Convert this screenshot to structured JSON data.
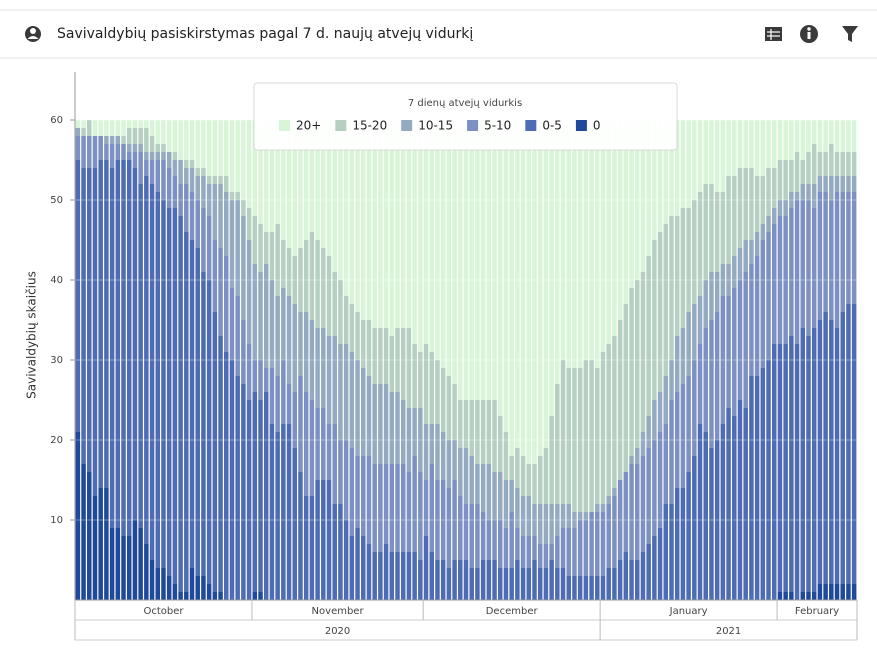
{
  "chart_data": {
    "type": "stacked_bar",
    "title": "Savivaldybių pasiskirstymas pagal 7 d. naujų atvejų vidurkį",
    "y_label": "Savivaldybių skaičius",
    "legend_title": "7 dienų atvejų vidurkis",
    "legend_position": "top",
    "ylim": [
      0,
      66
    ],
    "yticks": [
      10,
      20,
      30,
      40,
      50,
      60
    ],
    "grid": true,
    "categories": [
      "October",
      "October",
      "October",
      "October",
      "October",
      "October",
      "October",
      "October",
      "October",
      "October",
      "October",
      "October",
      "October",
      "October",
      "October",
      "October",
      "October",
      "October",
      "October",
      "October",
      "October",
      "October",
      "October",
      "October",
      "October",
      "October",
      "October",
      "October",
      "October",
      "October",
      "October",
      "November",
      "November",
      "November",
      "November",
      "November",
      "November",
      "November",
      "November",
      "November",
      "November",
      "November",
      "November",
      "November",
      "November",
      "November",
      "November",
      "November",
      "November",
      "November",
      "November",
      "November",
      "November",
      "November",
      "November",
      "November",
      "November",
      "November",
      "November",
      "November",
      "November",
      "December",
      "December",
      "December",
      "December",
      "December",
      "December",
      "December",
      "December",
      "December",
      "December",
      "December",
      "December",
      "December",
      "December",
      "December",
      "December",
      "December",
      "December",
      "December",
      "December",
      "December",
      "December",
      "December",
      "December",
      "December",
      "December",
      "December",
      "December",
      "December",
      "December",
      "December",
      "January",
      "January",
      "January",
      "January",
      "January",
      "January",
      "January",
      "January",
      "January",
      "January",
      "January",
      "January",
      "January",
      "January",
      "January",
      "January",
      "January",
      "January",
      "January",
      "January",
      "January",
      "January",
      "January",
      "January",
      "January",
      "January",
      "January",
      "January",
      "January",
      "January",
      "January",
      "February",
      "February",
      "February",
      "February",
      "February",
      "February",
      "February",
      "February",
      "February",
      "February",
      "February",
      "February",
      "February",
      "February"
    ],
    "year_categories": [
      "2020",
      "2020",
      "2020",
      "2020",
      "2020",
      "2020",
      "2020",
      "2020",
      "2020",
      "2020",
      "2020",
      "2020",
      "2020",
      "2020",
      "2020",
      "2020",
      "2020",
      "2020",
      "2020",
      "2020",
      "2020",
      "2020",
      "2020",
      "2020",
      "2020",
      "2020",
      "2020",
      "2020",
      "2020",
      "2020",
      "2020",
      "2020",
      "2020",
      "2020",
      "2020",
      "2020",
      "2020",
      "2020",
      "2020",
      "2020",
      "2020",
      "2020",
      "2020",
      "2020",
      "2020",
      "2020",
      "2020",
      "2020",
      "2020",
      "2020",
      "2020",
      "2020",
      "2020",
      "2020",
      "2020",
      "2020",
      "2020",
      "2020",
      "2020",
      "2020",
      "2020",
      "2020",
      "2020",
      "2020",
      "2020",
      "2020",
      "2020",
      "2020",
      "2020",
      "2020",
      "2020",
      "2020",
      "2020",
      "2020",
      "2020",
      "2020",
      "2020",
      "2020",
      "2020",
      "2020",
      "2020",
      "2020",
      "2020",
      "2020",
      "2020",
      "2020",
      "2020",
      "2020",
      "2020",
      "2020",
      "2020",
      "2020",
      "2021",
      "2021",
      "2021",
      "2021",
      "2021",
      "2021",
      "2021",
      "2021",
      "2021",
      "2021",
      "2021",
      "2021",
      "2021",
      "2021",
      "2021",
      "2021",
      "2021",
      "2021",
      "2021",
      "2021",
      "2021",
      "2021",
      "2021",
      "2021",
      "2021",
      "2021",
      "2021",
      "2021",
      "2021",
      "2021",
      "2021",
      "2021",
      "2021",
      "2021",
      "2021",
      "2021",
      "2021",
      "2021",
      "2021",
      "2021",
      "2021",
      "2021",
      "2021",
      "2021",
      "2021"
    ],
    "series": [
      {
        "name": "20+",
        "color": "#d9f5d7",
        "values": [
          1,
          1,
          0,
          2,
          2,
          2,
          2,
          2,
          2,
          1,
          1,
          1,
          1,
          2,
          3,
          3,
          4,
          4,
          5,
          5,
          5,
          6,
          6,
          7,
          7,
          7,
          7,
          9,
          9,
          10,
          11,
          12,
          13,
          14,
          14,
          13,
          15,
          16,
          17,
          16,
          15,
          14,
          15,
          16,
          17,
          19,
          20,
          22,
          23,
          24,
          25,
          25,
          26,
          26,
          26,
          27,
          26,
          26,
          26,
          28,
          29,
          28,
          29,
          30,
          31,
          32,
          33,
          35,
          35,
          35,
          35,
          35,
          35,
          35,
          37,
          39,
          42,
          41,
          42,
          43,
          43,
          42,
          41,
          37,
          33,
          30,
          31,
          31,
          31,
          30,
          30,
          31,
          29,
          28,
          27,
          25,
          23,
          21,
          20,
          19,
          17,
          15,
          14,
          13,
          12,
          12,
          11,
          11,
          10,
          9,
          8,
          8,
          9,
          9,
          7,
          7,
          6,
          6,
          6,
          7,
          7,
          6,
          6,
          5,
          5,
          5,
          4,
          5,
          4,
          3,
          4,
          4,
          3,
          4,
          4,
          4,
          4
        ]
      },
      {
        "name": "15-20",
        "color": "#b5cfc1",
        "values": [
          0,
          1,
          2,
          0,
          0,
          0,
          0,
          0,
          1,
          2,
          2,
          2,
          3,
          2,
          1,
          1,
          0,
          1,
          0,
          1,
          1,
          1,
          1,
          1,
          1,
          1,
          2,
          1,
          1,
          2,
          4,
          6,
          6,
          4,
          6,
          9,
          6,
          6,
          6,
          8,
          9,
          11,
          11,
          10,
          10,
          8,
          8,
          6,
          6,
          6,
          6,
          7,
          7,
          7,
          7,
          7,
          8,
          9,
          10,
          8,
          7,
          10,
          9,
          8,
          8,
          8,
          7,
          6,
          6,
          7,
          8,
          8,
          8,
          9,
          7,
          6,
          3,
          5,
          5,
          4,
          5,
          6,
          7,
          11,
          15,
          18,
          17,
          18,
          18,
          19,
          19,
          17,
          19,
          19,
          19,
          20,
          21,
          21,
          21,
          20,
          20,
          20,
          20,
          19,
          18,
          15,
          15,
          13,
          13,
          13,
          12,
          11,
          10,
          9,
          11,
          10,
          10,
          9,
          9,
          7,
          6,
          6,
          5,
          5,
          5,
          4,
          5,
          3,
          4,
          5,
          3,
          3,
          4,
          3,
          3,
          3,
          3
        ]
      },
      {
        "name": "10-15",
        "color": "#94aac1",
        "values": [
          1,
          0,
          0,
          0,
          0,
          1,
          1,
          1,
          0,
          1,
          1,
          1,
          1,
          1,
          1,
          1,
          2,
          2,
          3,
          2,
          3,
          3,
          4,
          4,
          7,
          8,
          8,
          11,
          12,
          13,
          13,
          12,
          11,
          13,
          11,
          10,
          9,
          11,
          11,
          8,
          10,
          10,
          10,
          10,
          11,
          11,
          12,
          12,
          12,
          12,
          11,
          10,
          10,
          10,
          10,
          9,
          9,
          8,
          8,
          6,
          8,
          7,
          5,
          7,
          6,
          6,
          5,
          6,
          7,
          6,
          5,
          6,
          7,
          6,
          6,
          6,
          4,
          5,
          5,
          5,
          4,
          5,
          5,
          5,
          4,
          3,
          3,
          2,
          1,
          1,
          0,
          1,
          1,
          1,
          1,
          0,
          0,
          1,
          2,
          3,
          4,
          5,
          5,
          6,
          5,
          7,
          7,
          8,
          7,
          6,
          6,
          6,
          5,
          4,
          4,
          4,
          4,
          4,
          3,
          3,
          2,
          2,
          2,
          2,
          2,
          2,
          1,
          2,
          2,
          3,
          2,
          2,
          3,
          2,
          2,
          2,
          2
        ]
      },
      {
        "name": "5-10",
        "color": "#7c90c3",
        "values": [
          3,
          4,
          4,
          4,
          3,
          2,
          3,
          2,
          2,
          1,
          2,
          4,
          2,
          3,
          4,
          5,
          5,
          4,
          4,
          6,
          6,
          6,
          8,
          8,
          9,
          11,
          12,
          9,
          10,
          8,
          7,
          4,
          5,
          3,
          7,
          7,
          8,
          5,
          7,
          12,
          13,
          12,
          9,
          9,
          7,
          10,
          8,
          10,
          11,
          9,
          10,
          11,
          11,
          11,
          10,
          11,
          11,
          11,
          10,
          12,
          11,
          7,
          11,
          10,
          10,
          10,
          10,
          8,
          7,
          8,
          8,
          6,
          5,
          5,
          6,
          5,
          7,
          4,
          4,
          4,
          3,
          3,
          3,
          2,
          4,
          5,
          6,
          6,
          7,
          7,
          8,
          8,
          8,
          8,
          9,
          10,
          10,
          12,
          12,
          12,
          12,
          12,
          12,
          10,
          13,
          12,
          13,
          12,
          12,
          10,
          13,
          16,
          16,
          16,
          14,
          16,
          15,
          17,
          14,
          15,
          16,
          16,
          15,
          16,
          16,
          16,
          18,
          16,
          17,
          15,
          16,
          15,
          15,
          17,
          15,
          14,
          14
        ]
      },
      {
        "name": "0-5",
        "color": "#4d6cb3",
        "values": [
          34,
          37,
          38,
          41,
          41,
          41,
          45,
          46,
          47,
          47,
          44,
          43,
          46,
          47,
          47,
          46,
          46,
          47,
          47,
          45,
          41,
          41,
          38,
          38,
          35,
          32,
          31,
          30,
          28,
          27,
          25,
          25,
          24,
          26,
          22,
          21,
          22,
          22,
          19,
          16,
          13,
          13,
          15,
          15,
          15,
          12,
          12,
          10,
          8,
          9,
          8,
          7,
          6,
          6,
          7,
          6,
          6,
          6,
          6,
          6,
          5,
          8,
          6,
          5,
          5,
          4,
          5,
          5,
          5,
          4,
          4,
          5,
          5,
          5,
          4,
          4,
          4,
          5,
          4,
          4,
          5,
          4,
          4,
          5,
          4,
          4,
          3,
          3,
          3,
          3,
          3,
          3,
          3,
          4,
          4,
          5,
          6,
          5,
          5,
          6,
          7,
          8,
          9,
          12,
          12,
          14,
          14,
          16,
          18,
          22,
          21,
          19,
          20,
          22,
          24,
          23,
          25,
          24,
          28,
          28,
          29,
          30,
          32,
          31,
          31,
          32,
          32,
          33,
          32,
          33,
          33,
          34,
          33,
          32,
          34,
          35,
          35
        ]
      },
      {
        "name": "0",
        "color": "#1f4a9c",
        "values": [
          21,
          17,
          16,
          13,
          14,
          14,
          9,
          9,
          8,
          8,
          10,
          9,
          7,
          5,
          4,
          4,
          3,
          2,
          1,
          1,
          4,
          3,
          3,
          2,
          1,
          1,
          0,
          0,
          0,
          0,
          0,
          1,
          1,
          0,
          0,
          0,
          0,
          0,
          0,
          0,
          0,
          0,
          0,
          0,
          0,
          0,
          0,
          0,
          0,
          0,
          0,
          0,
          0,
          0,
          0,
          0,
          0,
          0,
          0,
          0,
          0,
          0,
          0,
          0,
          0,
          0,
          0,
          0,
          0,
          0,
          0,
          0,
          0,
          0,
          0,
          0,
          0,
          0,
          0,
          0,
          0,
          0,
          0,
          0,
          0,
          0,
          0,
          0,
          0,
          0,
          0,
          0,
          0,
          0,
          0,
          0,
          0,
          0,
          0,
          0,
          0,
          0,
          0,
          0,
          0,
          0,
          0,
          0,
          0,
          0,
          0,
          0,
          0,
          0,
          0,
          0,
          0,
          0,
          0,
          0,
          0,
          0,
          0,
          1,
          1,
          1,
          0,
          1,
          1,
          1,
          2,
          2,
          2,
          2,
          2,
          2,
          2
        ]
      }
    ]
  }
}
